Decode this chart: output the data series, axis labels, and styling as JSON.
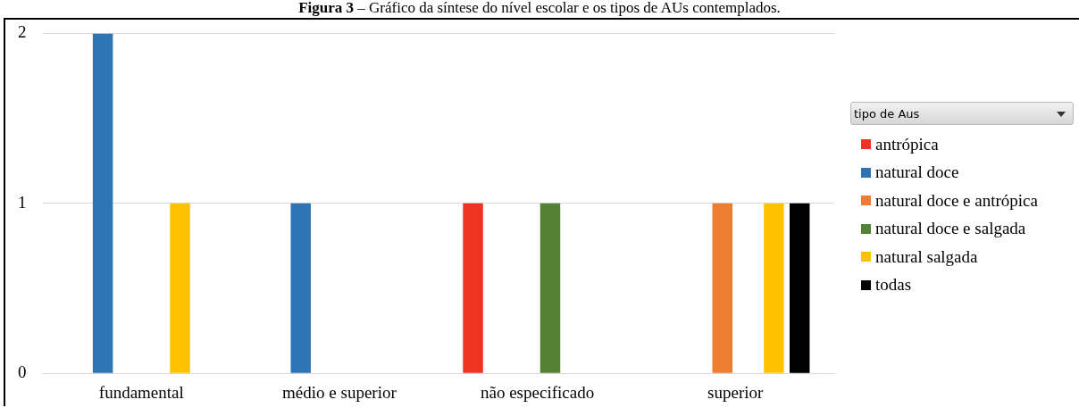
{
  "chart_data": {
    "type": "bar",
    "title": "Figura 3 – Gráfico da síntese do nível escolar e os tipos de AUs contemplados.",
    "legend_title": "tipo de Aus",
    "categories": [
      "fundamental",
      "médio e superior",
      "não especificado",
      "superior"
    ],
    "series": [
      {
        "name": "antrópica",
        "color": "#ef3323",
        "values": [
          null,
          null,
          1,
          null
        ]
      },
      {
        "name": "natural doce",
        "color": "#2e75b6",
        "values": [
          2,
          1,
          null,
          null
        ]
      },
      {
        "name": "natural doce e antrópica",
        "color": "#ed7d31",
        "values": [
          null,
          null,
          null,
          1
        ]
      },
      {
        "name": "natural doce e salgada",
        "color": "#548235",
        "values": [
          null,
          null,
          1,
          null
        ]
      },
      {
        "name": "natural salgada",
        "color": "#ffc000",
        "values": [
          1,
          null,
          null,
          1
        ]
      },
      {
        "name": "todas",
        "color": "#000000",
        "values": [
          null,
          null,
          null,
          1
        ]
      }
    ],
    "ylim": [
      0,
      2
    ],
    "yticks": [
      0,
      1,
      2
    ],
    "grid": "y",
    "legend": "right"
  }
}
